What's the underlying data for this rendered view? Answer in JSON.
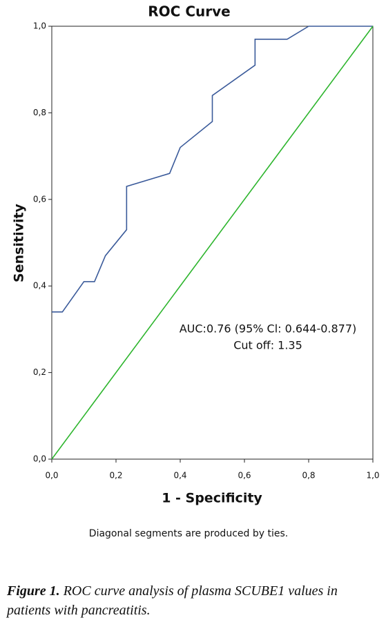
{
  "chart_data": {
    "type": "line",
    "title": "ROC Curve",
    "xlabel": "1 - Specificity",
    "ylabel": "Sensitivity",
    "series": [
      {
        "color": "#3a5a9a",
        "x": [
          0,
          0.033,
          0.1,
          0.133,
          0.167,
          0.233,
          0.233,
          0.367,
          0.4,
          0.5,
          0.5,
          0.633,
          0.633,
          0.733,
          0.8,
          1.0
        ],
        "values": [
          0.34,
          0.34,
          0.41,
          0.41,
          0.47,
          0.53,
          0.63,
          0.66,
          0.72,
          0.78,
          0.84,
          0.91,
          0.97,
          0.97,
          1.0,
          1.0
        ]
      },
      {
        "color": "#2db52d",
        "x": [
          0,
          1.0
        ],
        "values": [
          0,
          1.0
        ]
      }
    ],
    "xlim": [
      0,
      1.0
    ],
    "ylim": [
      0,
      1.0
    ],
    "xticks": [
      {
        "value": 0,
        "label": "0,0"
      },
      {
        "value": 0.2,
        "label": "0,2"
      },
      {
        "value": 0.4,
        "label": "0,4"
      },
      {
        "value": 0.6,
        "label": "0,6"
      },
      {
        "value": 0.8,
        "label": "0,8"
      },
      {
        "value": 1.0,
        "label": "1,0"
      }
    ],
    "yticks": [
      {
        "value": 0,
        "label": "0,0"
      },
      {
        "value": 0.2,
        "label": "0,2"
      },
      {
        "value": 0.4,
        "label": "0,4"
      },
      {
        "value": 0.6,
        "label": "0,6"
      },
      {
        "value": 0.8,
        "label": "0,8"
      },
      {
        "value": 1.0,
        "label": "1,0"
      }
    ],
    "annotations": [
      "AUC:0.76 (95% Cl: 0.644-0.877)",
      "Cut off: 1.35"
    ],
    "note": "Diagonal segments are produced by ties."
  },
  "caption": {
    "label": "Figure 1.",
    "text": "ROC curve analysis of plasma SCUBE1 values in patients with pancreatitis."
  }
}
